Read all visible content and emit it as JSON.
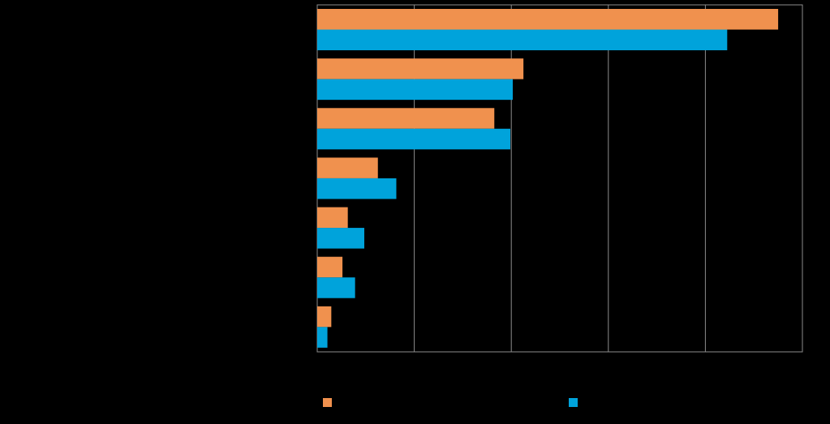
{
  "chart_data": {
    "type": "bar",
    "orientation": "horizontal",
    "categories": [
      "",
      "",
      "",
      "",
      "",
      "",
      ""
    ],
    "series": [
      {
        "values": [
          95,
          42.5,
          36.5,
          12.5,
          6.3,
          5.2,
          2.9
        ],
        "color": "#F0914E"
      },
      {
        "values": [
          84.5,
          40.3,
          39.8,
          16.3,
          9.7,
          7.8,
          2.1
        ],
        "color": "#00A3DB"
      }
    ],
    "xlim": [
      0,
      100
    ],
    "x_gridlines": [
      0,
      20,
      40,
      60,
      80,
      100
    ],
    "grid": true,
    "legend_position": "bottom",
    "title": "",
    "xlabel": "",
    "ylabel": ""
  }
}
